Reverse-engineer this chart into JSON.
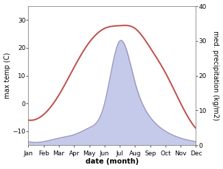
{
  "months": [
    1,
    2,
    3,
    4,
    5,
    6,
    7,
    8,
    9,
    10,
    11,
    12
  ],
  "month_labels": [
    "Jan",
    "Feb",
    "Mar",
    "Apr",
    "May",
    "Jun",
    "Jul",
    "Aug",
    "Sep",
    "Oct",
    "Nov",
    "Dec"
  ],
  "temp": [
    -6,
    -4,
    3,
    13,
    22,
    27,
    28,
    27,
    20,
    11,
    0,
    -9
  ],
  "precip": [
    1,
    1,
    2,
    3,
    5,
    12,
    30,
    18,
    8,
    4,
    2,
    1
  ],
  "temp_color": "#c0504d",
  "precip_color": "#9999bb",
  "precip_fill_color": "#c5caeb",
  "temp_ylim": [
    -15,
    35
  ],
  "precip_ylim": [
    0,
    40
  ],
  "temp_yticks": [
    -10,
    0,
    10,
    20,
    30
  ],
  "precip_yticks": [
    0,
    10,
    20,
    30,
    40
  ],
  "xlabel": "date (month)",
  "ylabel_left": "max temp (C)",
  "ylabel_right": "med. precipitation (kg/m2)",
  "background_color": "#ffffff",
  "label_fontsize": 7,
  "tick_fontsize": 6.5
}
